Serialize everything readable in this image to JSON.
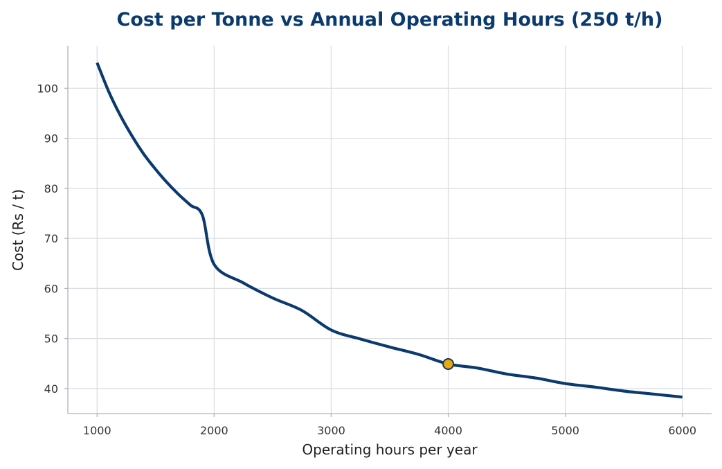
{
  "chart_data": {
    "type": "line",
    "title": "Cost per Tonne vs Annual Operating Hours (250 t/h)",
    "xlabel": "Operating hours per year",
    "ylabel": "Cost (Rs / t)",
    "xlim": [
      750,
      6250
    ],
    "ylim": [
      35,
      108.5
    ],
    "xticks": [
      1000,
      2000,
      3000,
      4000,
      5000,
      6000
    ],
    "yticks": [
      40,
      50,
      60,
      70,
      80,
      90,
      100
    ],
    "grid": true,
    "legend": "none",
    "series": [
      {
        "x": [
          1000,
          1100,
          1200,
          1300,
          1400,
          1500,
          1600,
          1700,
          1800,
          1900,
          2000,
          2250,
          2500,
          2750,
          3000,
          3250,
          3500,
          3750,
          4000,
          4250,
          4500,
          4750,
          5000,
          5250,
          5500,
          5750,
          6000
        ],
        "y": [
          105.1,
          99.3,
          94.5,
          90.4,
          86.8,
          83.8,
          81.1,
          78.7,
          76.6,
          74.6,
          64.8,
          61.1,
          58.1,
          55.6,
          51.7,
          49.9,
          48.3,
          46.8,
          44.9,
          44.1,
          42.9,
          42.1,
          41.0,
          40.3,
          39.5,
          38.9,
          38.3
        ],
        "color": "#0b3a6e"
      }
    ],
    "highlight_point": {
      "x": 4000,
      "y": 44.9,
      "fill": "#e8a90e",
      "stroke": "#0b3a6e"
    }
  }
}
